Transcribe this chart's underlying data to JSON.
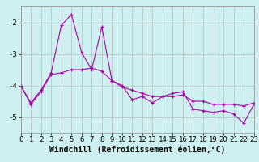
{
  "xlabel": "Windchill (Refroidissement éolien,°C)",
  "background_color": "#cff0f0",
  "grid_color": "#b0b0b0",
  "line_color": "#aa00aa",
  "x_values": [
    0,
    1,
    2,
    3,
    4,
    5,
    6,
    7,
    8,
    9,
    10,
    11,
    12,
    13,
    14,
    15,
    16,
    17,
    18,
    19,
    20,
    21,
    22,
    23
  ],
  "series1": [
    -4.0,
    -4.55,
    -4.15,
    -3.6,
    -2.1,
    -1.75,
    -2.95,
    -3.5,
    -2.15,
    -3.85,
    -4.0,
    -4.45,
    -4.35,
    -4.55,
    -4.35,
    -4.25,
    -4.2,
    -4.75,
    -4.8,
    -4.85,
    -4.8,
    -4.9,
    -5.2,
    -4.6
  ],
  "series2": [
    -4.0,
    -4.6,
    -4.2,
    -3.65,
    -3.6,
    -3.5,
    -3.5,
    -3.45,
    -3.55,
    -3.85,
    -4.05,
    -4.15,
    -4.25,
    -4.35,
    -4.35,
    -4.35,
    -4.3,
    -4.5,
    -4.5,
    -4.6,
    -4.6,
    -4.6,
    -4.65,
    -4.55
  ],
  "ylim": [
    -5.5,
    -1.5
  ],
  "xlim": [
    0,
    23
  ],
  "yticks": [
    -5,
    -4,
    -3,
    -2
  ],
  "xticks": [
    0,
    1,
    2,
    3,
    4,
    5,
    6,
    7,
    8,
    9,
    10,
    11,
    12,
    13,
    14,
    15,
    16,
    17,
    18,
    19,
    20,
    21,
    22,
    23
  ],
  "xlabel_fontsize": 7,
  "tick_fontsize": 6.5,
  "linewidth": 0.8,
  "marker": "+"
}
